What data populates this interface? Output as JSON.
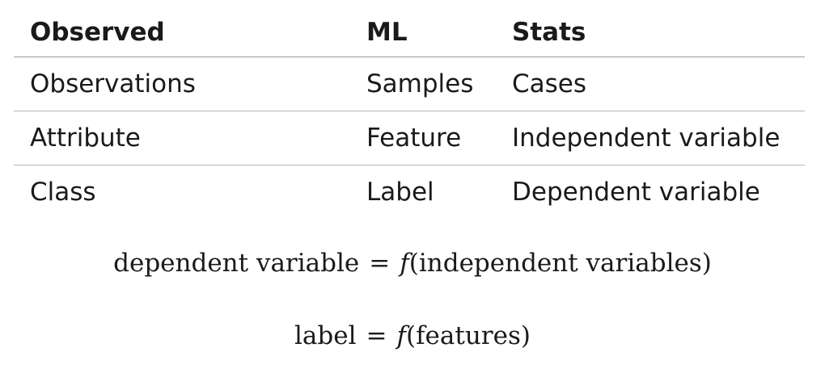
{
  "table": {
    "headers": [
      "Observed",
      "ML",
      "Stats"
    ],
    "rows": [
      [
        "Observations",
        "Samples",
        "Cases"
      ],
      [
        "Attribute",
        "Feature",
        "Independent variable"
      ],
      [
        "Class",
        "Label",
        "Dependent variable"
      ]
    ]
  },
  "formulas": [
    {
      "lhs": "dependent variable",
      "equals": "=",
      "fn": "f",
      "open": "(",
      "arg": "independent variables",
      "close": ")"
    },
    {
      "lhs": "label",
      "equals": "=",
      "fn": "f",
      "open": "(",
      "arg": "features",
      "close": ")"
    }
  ]
}
